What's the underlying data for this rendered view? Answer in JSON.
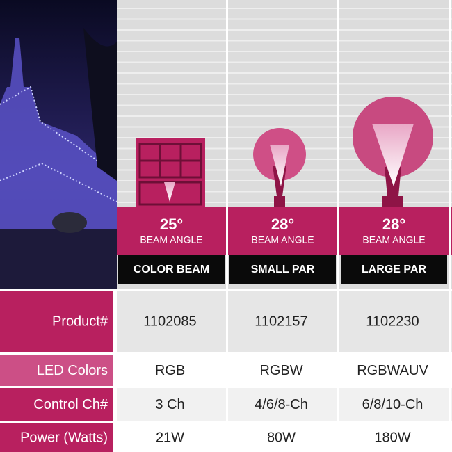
{
  "products": [
    {
      "beam_angle": "25°",
      "beam_label": "BEAM ANGLE",
      "name": "COLOR BEAM",
      "product_number": "1102085",
      "led_colors": "RGB",
      "control_ch": "3 Ch",
      "power": "21W"
    },
    {
      "beam_angle": "28°",
      "beam_label": "BEAM ANGLE",
      "name": "SMALL PAR",
      "product_number": "1102157",
      "led_colors": "RGBW",
      "control_ch": "4/6/8-Ch",
      "power": "80W"
    },
    {
      "beam_angle": "28°",
      "beam_label": "BEAM ANGLE",
      "name": "LARGE PAR",
      "product_number": "1102230",
      "led_colors": "RGBWAUV",
      "control_ch": "6/8/10-Ch",
      "power": "180W"
    }
  ],
  "row_labels": {
    "product_number": "Product#",
    "led_colors": "LED Colors",
    "control_ch": "Control Ch#",
    "power": "Power (Watts)"
  }
}
